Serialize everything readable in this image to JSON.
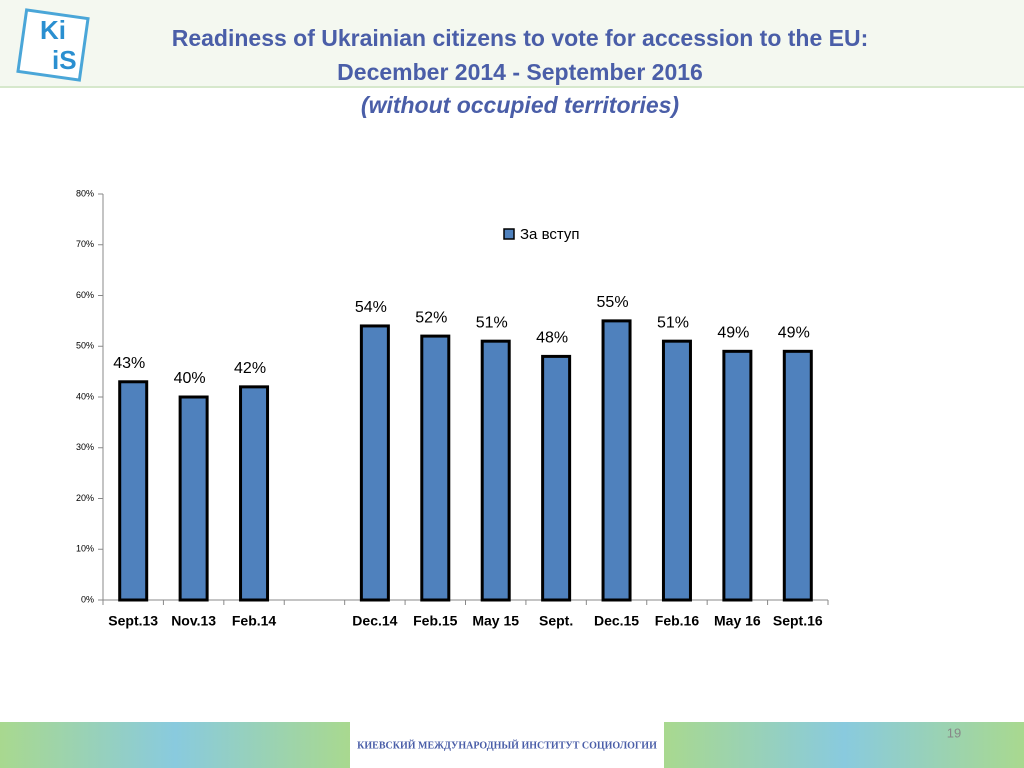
{
  "slide": {
    "logo_top": "Ki",
    "logo_bottom": "iS",
    "footer": "КИЕВСКИЙ МЕЖДУНАРОДНЫЙ ИНСТИТУТ СОЦИОЛОГИИ",
    "page_number": "19"
  },
  "chart_data": {
    "type": "bar",
    "title": "Readiness of Ukrainian citizens to vote for accession to the EU:",
    "subtitle": "December 2014 - September 2016",
    "annotation": "(without occupied territories)",
    "categories": [
      "Sept.13",
      "Nov.13",
      "Feb.14",
      null,
      "Dec.14",
      "Feb.15",
      "May 15",
      "Sept.",
      "Dec.15",
      "Feb.16",
      "May 16",
      "Sept.16"
    ],
    "series": [
      {
        "name": "За вступ",
        "color": "#4f81bd",
        "values": [
          43,
          40,
          42,
          null,
          54,
          52,
          51,
          48,
          55,
          51,
          49,
          49
        ],
        "value_labels": [
          "43%",
          "40%",
          "42%",
          null,
          "54%",
          "52%",
          "51%",
          "48%",
          "55%",
          "51%",
          "49%",
          "49%"
        ]
      }
    ],
    "ylim": [
      0,
      80
    ],
    "yticks": [
      {
        "value": 0,
        "label": "0%"
      },
      {
        "value": 10,
        "label": "10%"
      },
      {
        "value": 20,
        "label": "20%"
      },
      {
        "value": 30,
        "label": "30%"
      },
      {
        "value": 40,
        "label": "40%"
      },
      {
        "value": 50,
        "label": "50%"
      },
      {
        "value": 60,
        "label": "60%"
      },
      {
        "value": 70,
        "label": "70%"
      },
      {
        "value": 80,
        "label": "80%"
      }
    ],
    "grid": false,
    "legend": "top-center"
  }
}
